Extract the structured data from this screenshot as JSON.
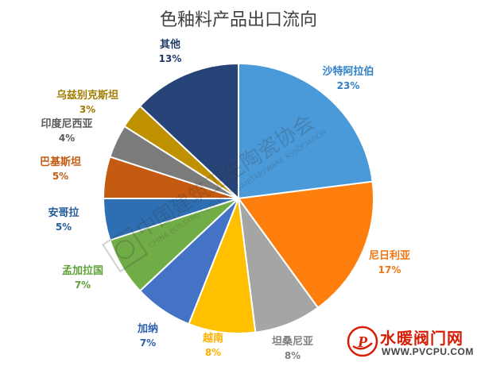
{
  "chart_data": {
    "type": "pie",
    "title": "色釉料产品出口流向",
    "slices": [
      {
        "name": "沙特阿拉伯",
        "value": 23,
        "label": "23%",
        "color": "#4a9ad9"
      },
      {
        "name": "尼日利亚",
        "value": 17,
        "label": "17%",
        "color": "#ff7f0e"
      },
      {
        "name": "坦桑尼亚",
        "value": 8,
        "label": "8%",
        "color": "#a5a5a5"
      },
      {
        "name": "越南",
        "value": 8,
        "label": "8%",
        "color": "#ffc000"
      },
      {
        "name": "加纳",
        "value": 7,
        "label": "7%",
        "color": "#4472c4"
      },
      {
        "name": "孟加拉国",
        "value": 7,
        "label": "7%",
        "color": "#70ad47"
      },
      {
        "name": "安哥拉",
        "value": 5,
        "label": "5%",
        "color": "#2e6fb3"
      },
      {
        "name": "巴基斯坦",
        "value": 5,
        "label": "5%",
        "color": "#c55a11"
      },
      {
        "name": "印度尼西亚",
        "value": 4,
        "label": "4%",
        "color": "#7b7b7b"
      },
      {
        "name": "乌兹别克斯坦",
        "value": 3,
        "label": "3%",
        "color": "#bf9000"
      },
      {
        "name": "其他",
        "value": 13,
        "label": "13%",
        "color": "#264478"
      }
    ],
    "label_colors": {
      "沙特阿拉伯": "#2f7fc8",
      "尼日利亚": "#f07410",
      "坦桑尼亚": "#808080",
      "越南": "#ffb000",
      "加纳": "#2f5fb0",
      "孟加拉国": "#5ea33a",
      "安哥拉": "#245c9a",
      "巴基斯坦": "#c55a11",
      "印度尼西亚": "#595959",
      "乌兹别克斯坦": "#a07c00",
      "其他": "#1f3a68"
    }
  },
  "watermark": {
    "cn_text": "中国建筑卫生陶瓷协会",
    "en_text": "CHINA BUILDING CERAMIC & SANITARYWARE ASSOCIATION"
  },
  "logo": {
    "name": "水暖阀门网",
    "url": "WWW.PVCPU.COM",
    "badge_letter": "P"
  }
}
